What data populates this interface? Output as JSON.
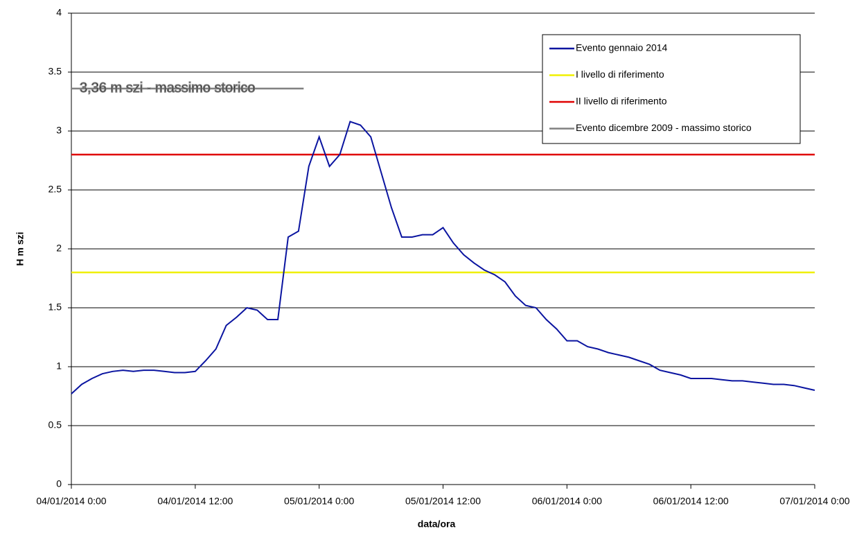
{
  "chart_data": {
    "type": "line",
    "ylabel": "H m szi",
    "xlabel": "data/ora",
    "annotation": "3,36 m szi - massimo storico",
    "ylim": [
      0,
      4
    ],
    "yticks": [
      0,
      0.5,
      1,
      1.5,
      2,
      2.5,
      3,
      3.5,
      4
    ],
    "grid": true,
    "xlim": [
      "04/01/2014 0:00",
      "07/01/2014 0:00"
    ],
    "xticks": [
      "04/01/2014 0:00",
      "04/01/2014 12:00",
      "05/01/2014 0:00",
      "05/01/2014 12:00",
      "06/01/2014 0:00",
      "06/01/2014 12:00",
      "07/01/2014 0:00"
    ],
    "legend": "upper right",
    "series": [
      {
        "name": "Evento gennaio 2014",
        "color": "#0a14a0",
        "x": [
          "04/01/2014 0:00",
          "04/01/2014 1:00",
          "04/01/2014 2:00",
          "04/01/2014 3:00",
          "04/01/2014 4:00",
          "04/01/2014 5:00",
          "04/01/2014 6:00",
          "04/01/2014 7:00",
          "04/01/2014 8:00",
          "04/01/2014 9:00",
          "04/01/2014 10:00",
          "04/01/2014 11:00",
          "04/01/2014 12:00",
          "04/01/2014 13:00",
          "04/01/2014 14:00",
          "04/01/2014 15:00",
          "04/01/2014 16:00",
          "04/01/2014 17:00",
          "04/01/2014 18:00",
          "04/01/2014 19:00",
          "04/01/2014 20:00",
          "04/01/2014 21:00",
          "04/01/2014 22:00",
          "04/01/2014 23:00",
          "05/01/2014 0:00",
          "05/01/2014 1:00",
          "05/01/2014 2:00",
          "05/01/2014 3:00",
          "05/01/2014 4:00",
          "05/01/2014 5:00",
          "05/01/2014 6:00",
          "05/01/2014 7:00",
          "05/01/2014 8:00",
          "05/01/2014 9:00",
          "05/01/2014 10:00",
          "05/01/2014 11:00",
          "05/01/2014 12:00",
          "05/01/2014 13:00",
          "05/01/2014 14:00",
          "05/01/2014 15:00",
          "05/01/2014 16:00",
          "05/01/2014 17:00",
          "05/01/2014 18:00",
          "05/01/2014 19:00",
          "05/01/2014 20:00",
          "05/01/2014 21:00",
          "05/01/2014 22:00",
          "05/01/2014 23:00",
          "06/01/2014 0:00",
          "06/01/2014 1:00",
          "06/01/2014 2:00",
          "06/01/2014 3:00",
          "06/01/2014 4:00",
          "06/01/2014 5:00",
          "06/01/2014 6:00",
          "06/01/2014 7:00",
          "06/01/2014 8:00",
          "06/01/2014 9:00",
          "06/01/2014 10:00",
          "06/01/2014 11:00",
          "06/01/2014 12:00",
          "06/01/2014 13:00",
          "06/01/2014 14:00",
          "06/01/2014 15:00",
          "06/01/2014 16:00",
          "06/01/2014 17:00",
          "06/01/2014 18:00",
          "06/01/2014 19:00",
          "06/01/2014 20:00",
          "06/01/2014 21:00",
          "06/01/2014 22:00",
          "06/01/2014 23:00",
          "07/01/2014 0:00"
        ],
        "values": [
          0.77,
          0.85,
          0.9,
          0.94,
          0.96,
          0.97,
          0.96,
          0.97,
          0.97,
          0.96,
          0.95,
          0.95,
          0.96,
          1.05,
          1.15,
          1.35,
          1.42,
          1.5,
          1.48,
          1.4,
          1.4,
          2.1,
          2.15,
          2.7,
          2.95,
          2.7,
          2.8,
          3.08,
          3.05,
          2.95,
          2.65,
          2.35,
          2.1,
          2.1,
          2.12,
          2.12,
          2.18,
          2.05,
          1.95,
          1.88,
          1.82,
          1.78,
          1.72,
          1.6,
          1.52,
          1.5,
          1.4,
          1.32,
          1.22,
          1.22,
          1.17,
          1.15,
          1.12,
          1.1,
          1.08,
          1.05,
          1.02,
          0.97,
          0.95,
          0.93,
          0.9,
          0.9,
          0.9,
          0.89,
          0.88,
          0.88,
          0.87,
          0.86,
          0.85,
          0.85,
          0.84,
          0.82,
          0.8
        ]
      },
      {
        "name": "I livello di riferimento",
        "color": "#f0f000",
        "x": [
          "04/01/2014 0:00",
          "07/01/2014 0:00"
        ],
        "values": [
          1.8,
          1.8
        ]
      },
      {
        "name": "II livello di riferimento",
        "color": "#e00000",
        "x": [
          "04/01/2014 0:00",
          "07/01/2014 0:00"
        ],
        "values": [
          2.8,
          2.8
        ]
      },
      {
        "name": "Evento dicembre 2009 - massimo storico",
        "color": "#808080",
        "x": [
          "04/01/2014 0:00",
          "04/01/2014 22:30"
        ],
        "values": [
          3.36,
          3.36
        ]
      }
    ]
  }
}
